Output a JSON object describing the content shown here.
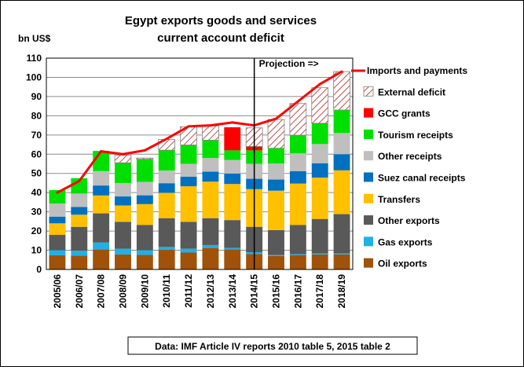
{
  "chart_data": {
    "type": "bar",
    "title": "Egypt exports goods and services",
    "subtitle": "current account deficit",
    "ylabel": "bn US$",
    "ylim": [
      0,
      110
    ],
    "yticks": [
      0,
      10,
      20,
      30,
      40,
      50,
      60,
      70,
      80,
      90,
      100,
      110
    ],
    "grid": true,
    "legend_position": "right",
    "categories": [
      "2005/06",
      "2006/07",
      "2007/08",
      "2008/09",
      "2009/10",
      "2010/11",
      "2011/12",
      "2012/13",
      "2013/14",
      "2014/15",
      "2015/16",
      "2016/17",
      "2017/18",
      "2018/19"
    ],
    "series": [
      {
        "name": "Oil exports",
        "color": "#a0520a",
        "values": [
          7.4,
          7.2,
          10.5,
          7.8,
          7.6,
          10.2,
          8.8,
          11.2,
          10.5,
          8.0,
          7.0,
          7.5,
          7.8,
          7.8
        ]
      },
      {
        "name": "Gas exports",
        "color": "#1fb0e8",
        "values": [
          2.6,
          2.5,
          3.5,
          3.0,
          2.4,
          1.5,
          2.0,
          1.5,
          0.7,
          1.0,
          0.5,
          0.5,
          0.5,
          0.5
        ]
      },
      {
        "name": "Other exports",
        "color": "#595959",
        "values": [
          8.0,
          12.5,
          15.2,
          14.0,
          13.2,
          15.0,
          14.0,
          14.0,
          14.5,
          13.2,
          13.0,
          15.2,
          18.0,
          20.5
        ]
      },
      {
        "name": "Transfers",
        "color": "#ffc000",
        "values": [
          6.0,
          6.3,
          9.3,
          8.5,
          10.8,
          13.2,
          18.5,
          19.0,
          18.8,
          19.6,
          20.5,
          21.5,
          21.5,
          22.8
        ]
      },
      {
        "name": "Suez canal receipts",
        "color": "#0070c0",
        "values": [
          3.5,
          4.0,
          5.2,
          4.7,
          4.6,
          5.0,
          5.0,
          5.2,
          5.4,
          5.4,
          5.8,
          6.5,
          7.5,
          8.4
        ]
      },
      {
        "name": "Other receipts",
        "color": "#bfbfbf",
        "values": [
          6.8,
          7.0,
          7.5,
          7.0,
          7.0,
          6.6,
          6.7,
          7.1,
          7.1,
          7.8,
          8.3,
          9.2,
          10.0,
          11.0
        ]
      },
      {
        "name": "Tourism receipts",
        "color": "#00e000",
        "values": [
          7.0,
          8.0,
          10.5,
          10.5,
          11.8,
          10.6,
          9.8,
          9.3,
          5.0,
          7.0,
          8.0,
          9.5,
          10.8,
          12.0
        ]
      },
      {
        "name": "GCC grants",
        "color": "#ff0000",
        "values": [
          0,
          0,
          0,
          0,
          0,
          0,
          0,
          0,
          12.0,
          2.0,
          0,
          0,
          0,
          0
        ]
      },
      {
        "name": "External deficit",
        "color": "#c0504d",
        "pattern": "hatch",
        "values": [
          0,
          0,
          0,
          4.0,
          0.6,
          5.6,
          9.5,
          7.4,
          0,
          9.7,
          15.0,
          16.5,
          18.5,
          20.0
        ]
      }
    ],
    "line_series": {
      "name": "Imports and payments",
      "color": "#ff0000",
      "values": [
        40.0,
        46.0,
        61.5,
        60.0,
        62.0,
        68.0,
        74.5,
        75.0,
        76.5,
        75.0,
        78.5,
        87.5,
        96.5,
        103.0
      ]
    },
    "legend": [
      "Imports and payments",
      "External deficit",
      "GCC grants",
      "Tourism receipts",
      "Other receipts",
      "Suez canal receipts",
      "Transfers",
      "Other exports",
      "Gas exports",
      "Oil exports"
    ],
    "annotations": {
      "projection_label": "Projection =>",
      "projection_after_category": "2014/15"
    },
    "source": "Data: IMF Article IV reports 2010 table 5, 2015 table 2"
  }
}
